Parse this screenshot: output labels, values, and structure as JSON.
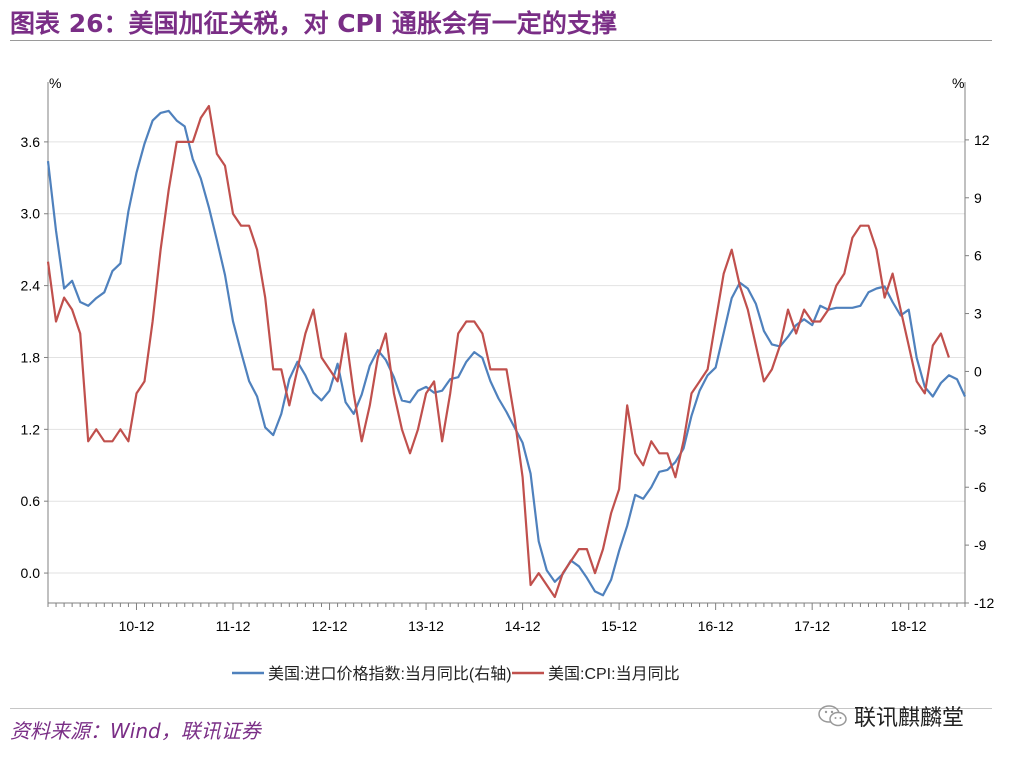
{
  "title": "图表 26：美国加征关税，对 CPI 通胀会有一定的支撑",
  "source": "资料来源：Wind，联讯证券",
  "watermark": "联讯麒麟堂",
  "colors": {
    "import_price": "#4f81bd",
    "cpi": "#c0504d",
    "title": "#7a2e86"
  },
  "chart_data": {
    "type": "line",
    "x_tick_labels": [
      "10-12",
      "11-12",
      "12-12",
      "13-12",
      "14-12",
      "15-12",
      "16-12",
      "17-12",
      "18-12"
    ],
    "x_start": "2010-01",
    "left_axis": {
      "unit_label": "%",
      "min": -0.25,
      "max": 4.1,
      "ticks": [
        0.0,
        0.6,
        1.2,
        1.8,
        2.4,
        3.0,
        3.6
      ]
    },
    "right_axis": {
      "unit_label": "%",
      "min": -12,
      "max": 15,
      "ticks": [
        -12,
        -9,
        -6,
        -3,
        0,
        3,
        6,
        9,
        12
      ]
    },
    "legend": [
      "美国:进口价格指数:当月同比(右轴)",
      "美国:CPI:当月同比"
    ],
    "legend_position": "bottom",
    "grid": "horizontal",
    "series": [
      {
        "name": "美国:进口价格指数:当月同比(右轴)",
        "axis": "right",
        "values": [
          10.9,
          7.3,
          4.3,
          4.7,
          3.6,
          3.4,
          3.8,
          4.1,
          5.2,
          5.6,
          8.3,
          10.3,
          11.8,
          13.0,
          13.4,
          13.5,
          13.0,
          12.7,
          11.0,
          10.0,
          8.5,
          6.8,
          5.0,
          2.6,
          1.0,
          -0.5,
          -1.3,
          -2.9,
          -3.3,
          -2.2,
          -0.4,
          0.5,
          -0.2,
          -1.1,
          -1.5,
          -1.0,
          0.4,
          -1.6,
          -2.2,
          -1.2,
          0.3,
          1.1,
          0.6,
          -0.3,
          -1.5,
          -1.6,
          -1.0,
          -0.8,
          -1.1,
          -1.0,
          -0.4,
          -0.3,
          0.5,
          1.0,
          0.7,
          -0.5,
          -1.4,
          -2.1,
          -2.9,
          -3.7,
          -5.3,
          -8.8,
          -10.3,
          -10.9,
          -10.5,
          -9.8,
          -10.1,
          -10.7,
          -11.4,
          -11.6,
          -10.8,
          -9.3,
          -8.0,
          -6.4,
          -6.6,
          -6.0,
          -5.2,
          -5.1,
          -4.7,
          -4.0,
          -2.3,
          -1.0,
          -0.2,
          0.2,
          2.0,
          3.8,
          4.6,
          4.3,
          3.5,
          2.1,
          1.4,
          1.3,
          1.8,
          2.4,
          2.7,
          2.4,
          3.4,
          3.2,
          3.3,
          3.3,
          3.3,
          3.4,
          4.1,
          4.3,
          4.4,
          3.6,
          2.9,
          3.2,
          0.7,
          -0.8,
          -1.3,
          -0.6,
          -0.2,
          -0.4,
          -1.3
        ]
      },
      {
        "name": "美国:CPI:当月同比",
        "axis": "left",
        "values": [
          2.6,
          2.1,
          2.3,
          2.2,
          2.0,
          1.1,
          1.2,
          1.1,
          1.1,
          1.2,
          1.1,
          1.5,
          1.6,
          2.1,
          2.7,
          3.2,
          3.6,
          3.6,
          3.6,
          3.8,
          3.9,
          3.5,
          3.4,
          3.0,
          2.9,
          2.9,
          2.7,
          2.3,
          1.7,
          1.7,
          1.4,
          1.7,
          2.0,
          2.2,
          1.8,
          1.7,
          1.6,
          2.0,
          1.5,
          1.1,
          1.4,
          1.8,
          2.0,
          1.5,
          1.2,
          1.0,
          1.2,
          1.5,
          1.6,
          1.1,
          1.5,
          2.0,
          2.1,
          2.1,
          2.0,
          1.7,
          1.7,
          1.7,
          1.3,
          0.8,
          -0.1,
          0.0,
          -0.1,
          -0.2,
          0.0,
          0.1,
          0.2,
          0.2,
          0.0,
          0.2,
          0.5,
          0.7,
          1.4,
          1.0,
          0.9,
          1.1,
          1.0,
          1.0,
          0.8,
          1.1,
          1.5,
          1.6,
          1.7,
          2.1,
          2.5,
          2.7,
          2.4,
          2.2,
          1.9,
          1.6,
          1.7,
          1.9,
          2.2,
          2.0,
          2.2,
          2.1,
          2.1,
          2.2,
          2.4,
          2.5,
          2.8,
          2.9,
          2.9,
          2.7,
          2.3,
          2.5,
          2.2,
          1.9,
          1.6,
          1.5,
          1.9,
          2.0,
          1.8
        ]
      }
    ]
  }
}
